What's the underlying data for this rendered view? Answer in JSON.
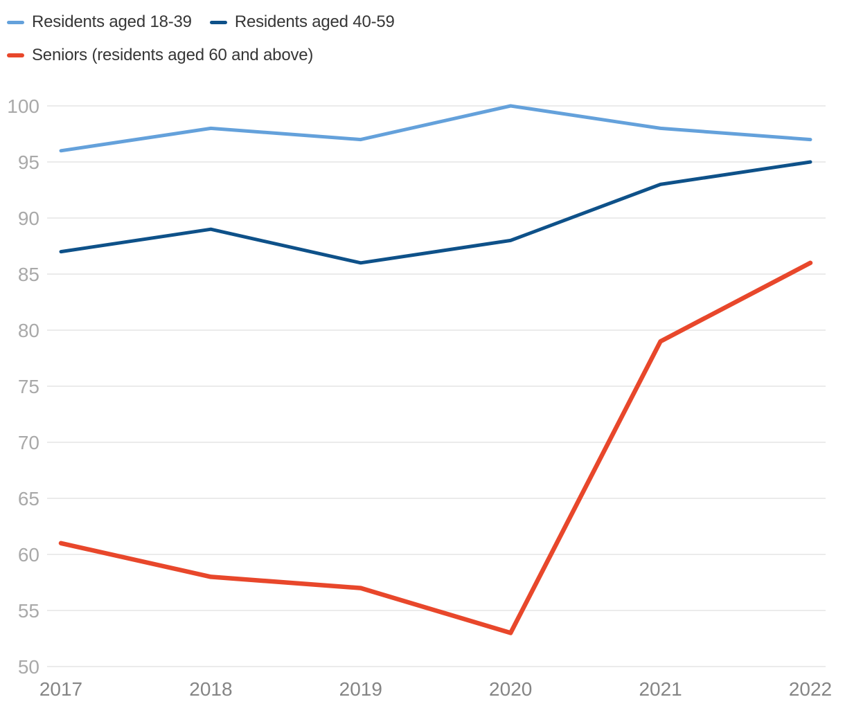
{
  "chart_data": {
    "type": "line",
    "x": [
      "2017",
      "2018",
      "2019",
      "2020",
      "2021",
      "2022"
    ],
    "series": [
      {
        "name": "Residents aged 18-39",
        "color": "#64A1DB",
        "line_width": 5,
        "values": [
          96,
          98,
          97,
          100,
          98,
          97
        ]
      },
      {
        "name": "Residents aged 40-59",
        "color": "#0E5189",
        "line_width": 5,
        "values": [
          87,
          89,
          86,
          88,
          93,
          95
        ]
      },
      {
        "name": "Seniors (residents aged 60 and above)",
        "color": "#E8472B",
        "line_width": 6.5,
        "values": [
          61,
          58,
          57,
          53,
          79,
          86
        ]
      }
    ],
    "y_ticks": [
      50,
      55,
      60,
      65,
      70,
      75,
      80,
      85,
      90,
      95,
      100
    ],
    "ylim": [
      50,
      100
    ],
    "grid": true,
    "legend_position": "top-left",
    "title": "",
    "xlabel": "",
    "ylabel": ""
  },
  "colors": {
    "grid": "#e8e8e8",
    "y_tick_label": "#a9a9a9",
    "x_tick_label": "#858585",
    "legend_text": "#363636",
    "background": "#ffffff"
  }
}
